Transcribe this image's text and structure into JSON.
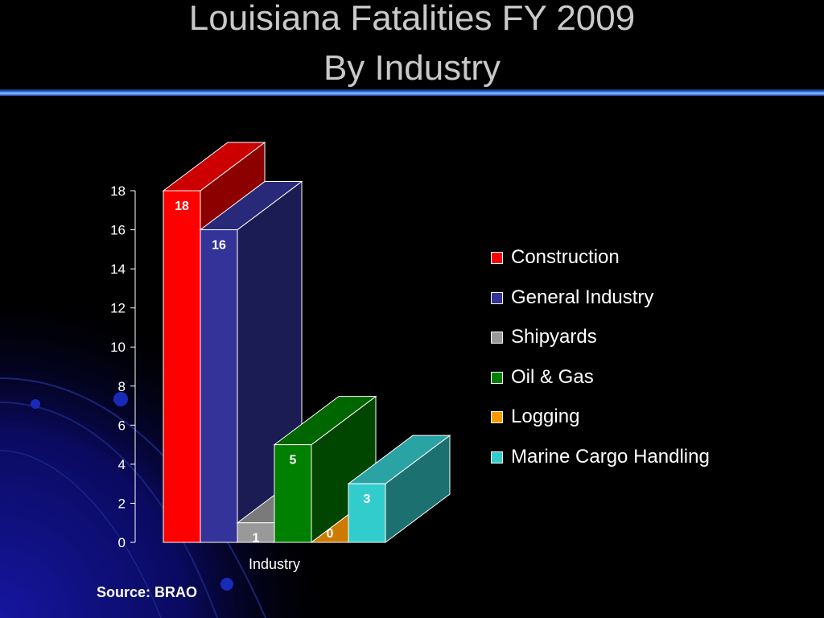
{
  "title": [
    "Louisiana Fatalities FY 2009",
    "By Industry"
  ],
  "source": "Source: BRAO",
  "colors": {
    "background": "#000000",
    "title": "#c9c9c9",
    "axis": "#ffffff"
  },
  "chart_data": {
    "type": "bar",
    "three_d": true,
    "title": "",
    "xlabel": "Industry",
    "ylabel": "",
    "ylim": [
      0,
      18
    ],
    "yticks": [
      0,
      2,
      4,
      6,
      8,
      10,
      12,
      14,
      16,
      18
    ],
    "grid": false,
    "legend_position": "right",
    "series": [
      {
        "name": "Construction",
        "value": 18,
        "color": "#ff0000"
      },
      {
        "name": "General Industry",
        "value": 16,
        "color": "#333399"
      },
      {
        "name": "Shipyards",
        "value": 1,
        "color": "#999999"
      },
      {
        "name": "Oil & Gas",
        "value": 5,
        "color": "#008000"
      },
      {
        "name": "Logging",
        "value": 0,
        "color": "#ff9900"
      },
      {
        "name": "Marine Cargo Handling",
        "value": 3,
        "color": "#33cccc"
      }
    ]
  }
}
